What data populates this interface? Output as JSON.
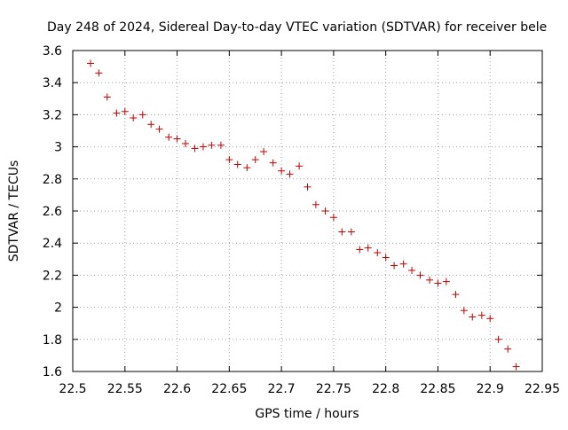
{
  "chart_data": {
    "type": "scatter",
    "title": "Day 248 of 2024, Sidereal Day-to-day VTEC variation (SDTVAR) for receiver bele",
    "xlabel": "GPS time / hours",
    "ylabel": "SDTVAR / TECUs",
    "xlim": [
      22.5,
      22.95
    ],
    "ylim": [
      1.6,
      3.6
    ],
    "x_ticks": [
      "22.5",
      "22.55",
      "22.6",
      "22.65",
      "22.7",
      "22.75",
      "22.8",
      "22.85",
      "22.9",
      "22.95"
    ],
    "y_ticks": [
      "1.6",
      "1.8",
      "2",
      "2.2",
      "2.4",
      "2.6",
      "2.8",
      "3",
      "3.2",
      "3.4",
      "3.6"
    ],
    "grid": true,
    "marker_color": "#c00000",
    "marker": "plus",
    "series": [
      {
        "name": "SDTVAR",
        "points": [
          [
            22.517,
            3.52
          ],
          [
            22.525,
            3.46
          ],
          [
            22.533,
            3.31
          ],
          [
            22.542,
            3.21
          ],
          [
            22.55,
            3.22
          ],
          [
            22.558,
            3.18
          ],
          [
            22.567,
            3.2
          ],
          [
            22.575,
            3.14
          ],
          [
            22.583,
            3.11
          ],
          [
            22.592,
            3.06
          ],
          [
            22.6,
            3.05
          ],
          [
            22.608,
            3.02
          ],
          [
            22.617,
            2.99
          ],
          [
            22.625,
            3.0
          ],
          [
            22.633,
            3.01
          ],
          [
            22.642,
            3.01
          ],
          [
            22.65,
            2.92
          ],
          [
            22.658,
            2.89
          ],
          [
            22.667,
            2.87
          ],
          [
            22.675,
            2.92
          ],
          [
            22.683,
            2.97
          ],
          [
            22.692,
            2.9
          ],
          [
            22.7,
            2.85
          ],
          [
            22.708,
            2.83
          ],
          [
            22.717,
            2.88
          ],
          [
            22.725,
            2.75
          ],
          [
            22.733,
            2.64
          ],
          [
            22.742,
            2.6
          ],
          [
            22.75,
            2.56
          ],
          [
            22.758,
            2.47
          ],
          [
            22.767,
            2.47
          ],
          [
            22.775,
            2.36
          ],
          [
            22.783,
            2.37
          ],
          [
            22.792,
            2.34
          ],
          [
            22.8,
            2.31
          ],
          [
            22.808,
            2.26
          ],
          [
            22.817,
            2.27
          ],
          [
            22.825,
            2.23
          ],
          [
            22.833,
            2.2
          ],
          [
            22.842,
            2.17
          ],
          [
            22.85,
            2.15
          ],
          [
            22.858,
            2.16
          ],
          [
            22.867,
            2.08
          ],
          [
            22.875,
            1.98
          ],
          [
            22.883,
            1.94
          ],
          [
            22.892,
            1.95
          ],
          [
            22.9,
            1.93
          ],
          [
            22.908,
            1.8
          ],
          [
            22.917,
            1.74
          ],
          [
            22.925,
            1.63
          ]
        ]
      }
    ]
  }
}
